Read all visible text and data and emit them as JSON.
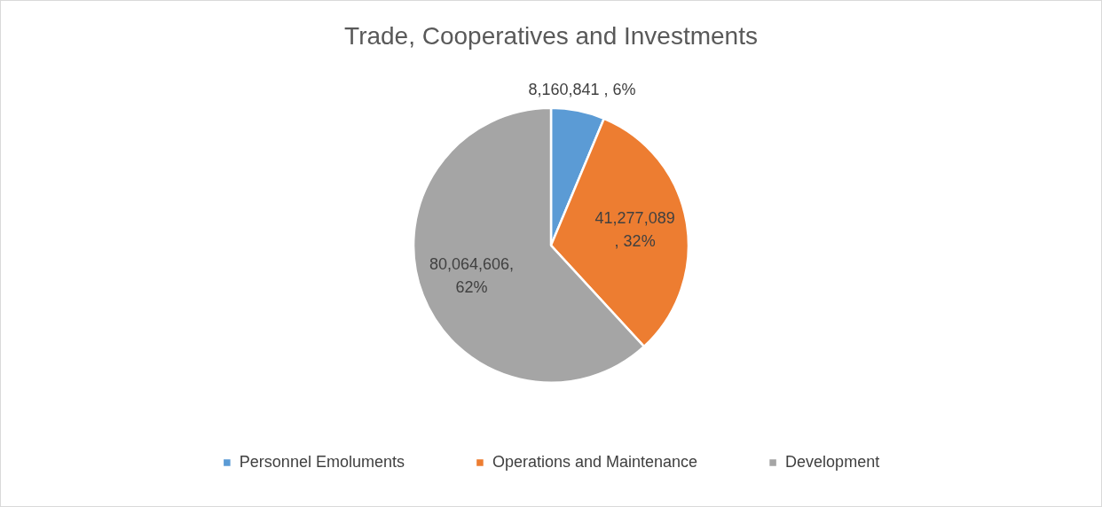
{
  "chart_data": {
    "type": "pie",
    "title": "Trade, Cooperatives and Investments",
    "categories": [
      "Personnel Emoluments",
      "Operations and Maintenance",
      "Development"
    ],
    "values": [
      8160841,
      41277089,
      80064606
    ],
    "colors": [
      "#5b9bd5",
      "#ed7d31",
      "#a5a5a5"
    ],
    "value_labels": [
      "8,160,841 , 6%",
      "41,277,089 , 32%",
      "80,064,606, 62%"
    ],
    "legend": "bottom"
  }
}
